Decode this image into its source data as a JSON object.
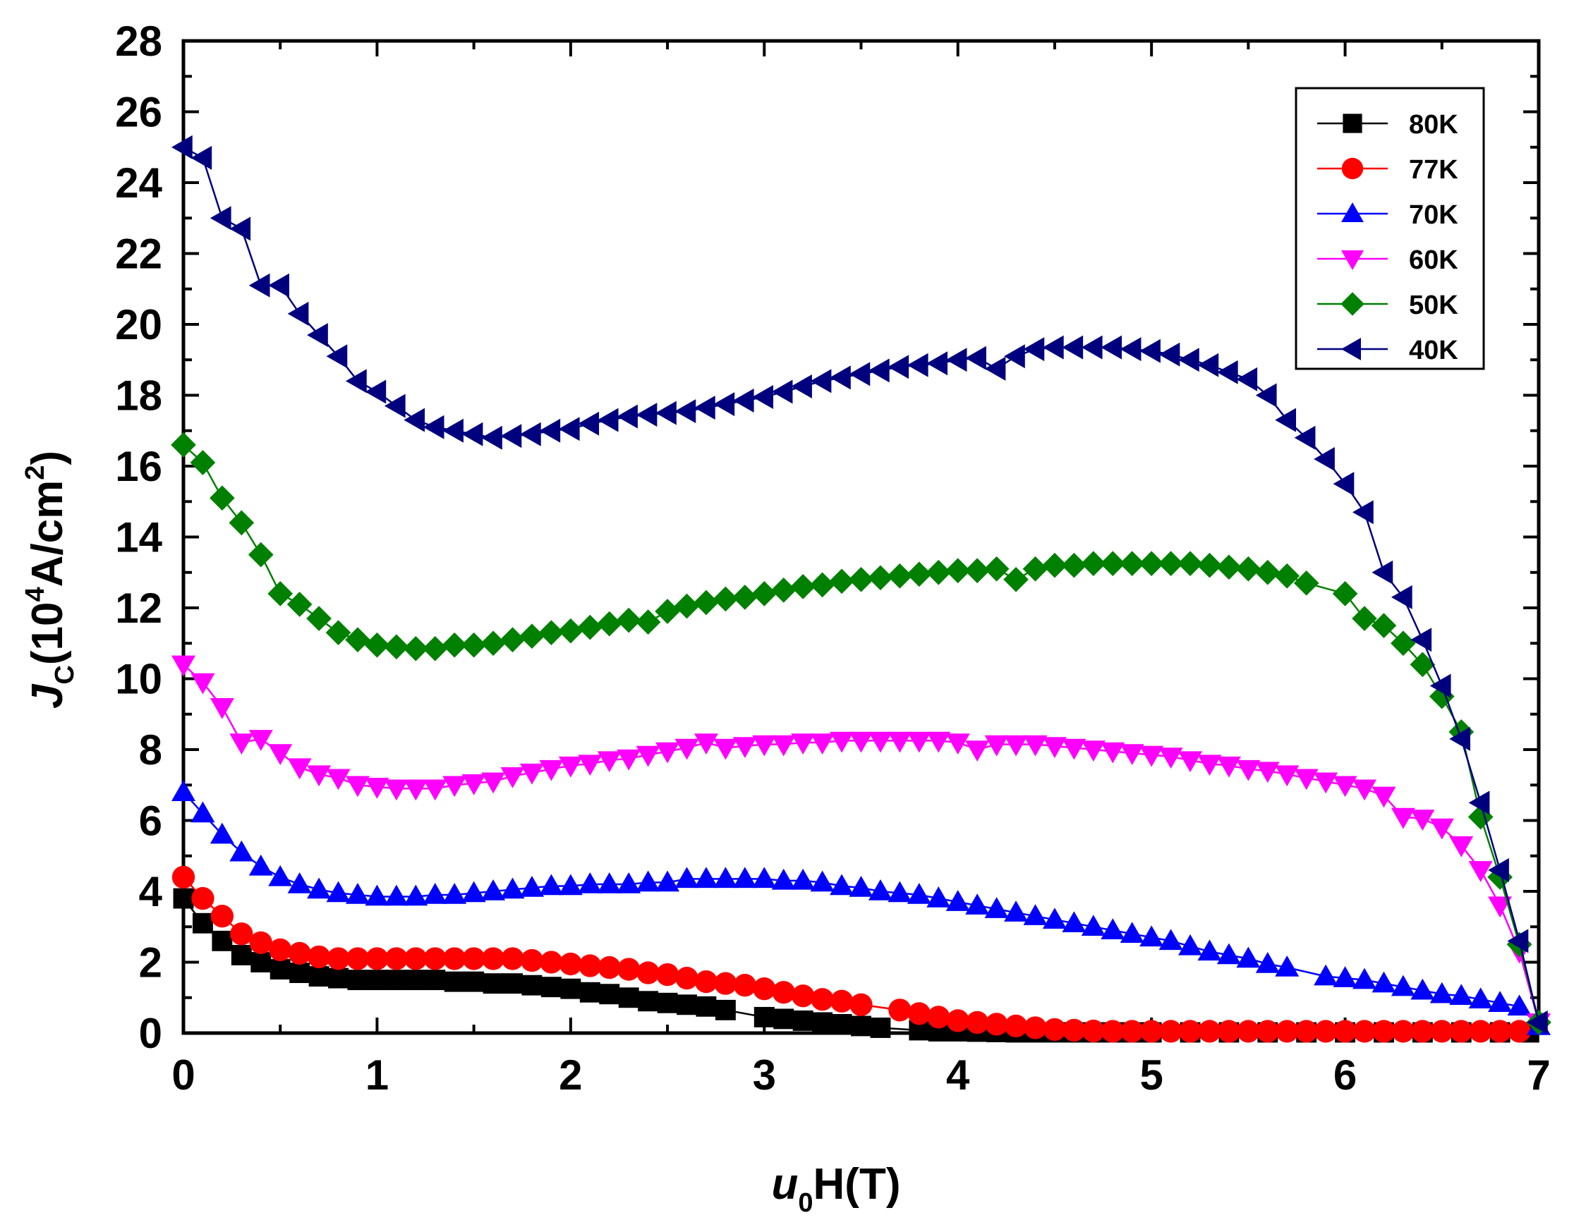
{
  "chart_data": {
    "type": "line",
    "xlabel": {
      "italic": "u",
      "sub": "0",
      "rest": "H(T)"
    },
    "ylabel": {
      "italic": "J",
      "sub": "C",
      "pre": "(10",
      "sup1": "4",
      "mid": "A/cm",
      "sup2": "2",
      "post": ")"
    },
    "xlim": [
      0,
      7
    ],
    "ylim": [
      0,
      28
    ],
    "xticks": [
      "0",
      "1",
      "2",
      "3",
      "4",
      "5",
      "6",
      "7"
    ],
    "yticks": [
      "0",
      "2",
      "4",
      "6",
      "8",
      "10",
      "12",
      "14",
      "16",
      "18",
      "20",
      "22",
      "24",
      "26",
      "28"
    ],
    "legend_position": "top-right",
    "series": [
      {
        "name": "80K",
        "color": "#000000",
        "marker": "square",
        "x": [
          0,
          0.1,
          0.2,
          0.3,
          0.4,
          0.5,
          0.6,
          0.7,
          0.8,
          0.9,
          1.0,
          1.1,
          1.2,
          1.3,
          1.4,
          1.5,
          1.6,
          1.7,
          1.8,
          1.9,
          2.0,
          2.1,
          2.2,
          2.3,
          2.4,
          2.5,
          2.6,
          2.7,
          2.8,
          3.0,
          3.1,
          3.2,
          3.3,
          3.4,
          3.5,
          3.6,
          3.8,
          3.9,
          4.0,
          4.1,
          4.2,
          4.3,
          4.4,
          4.5,
          4.6,
          4.7,
          4.8,
          4.9,
          5.0,
          5.2,
          5.4,
          5.6,
          5.8,
          6.0,
          6.2,
          6.4,
          6.6,
          6.8,
          6.95
        ],
        "y": [
          3.8,
          3.1,
          2.6,
          2.2,
          2.0,
          1.8,
          1.7,
          1.6,
          1.55,
          1.5,
          1.5,
          1.5,
          1.5,
          1.5,
          1.45,
          1.45,
          1.4,
          1.4,
          1.35,
          1.3,
          1.25,
          1.15,
          1.1,
          1.0,
          0.9,
          0.85,
          0.8,
          0.75,
          0.65,
          0.45,
          0.4,
          0.35,
          0.3,
          0.25,
          0.2,
          0.15,
          0.08,
          0.05,
          0.05,
          0.04,
          0.03,
          0.02,
          0.02,
          0.02,
          0.02,
          0.02,
          0.02,
          0.02,
          0.02,
          0.02,
          0.02,
          0.02,
          0.02,
          0.02,
          0.02,
          0.02,
          0.02,
          0.02,
          0.02
        ]
      },
      {
        "name": "77K",
        "color": "#ff0000",
        "marker": "circle",
        "x": [
          0,
          0.1,
          0.2,
          0.3,
          0.4,
          0.5,
          0.6,
          0.7,
          0.8,
          0.9,
          1.0,
          1.1,
          1.2,
          1.3,
          1.4,
          1.5,
          1.6,
          1.7,
          1.8,
          1.9,
          2.0,
          2.1,
          2.2,
          2.3,
          2.4,
          2.5,
          2.6,
          2.7,
          2.8,
          2.9,
          3.0,
          3.1,
          3.2,
          3.3,
          3.4,
          3.5,
          3.7,
          3.8,
          3.9,
          4.0,
          4.1,
          4.2,
          4.3,
          4.4,
          4.5,
          4.6,
          4.7,
          4.8,
          4.9,
          5.0,
          5.1,
          5.2,
          5.3,
          5.4,
          5.5,
          5.6,
          5.7,
          5.8,
          5.9,
          6.0,
          6.1,
          6.2,
          6.3,
          6.4,
          6.5,
          6.6,
          6.7,
          6.8,
          6.9
        ],
        "y": [
          4.4,
          3.8,
          3.3,
          2.8,
          2.55,
          2.35,
          2.25,
          2.15,
          2.1,
          2.1,
          2.1,
          2.1,
          2.1,
          2.1,
          2.1,
          2.1,
          2.1,
          2.1,
          2.05,
          2.0,
          1.95,
          1.9,
          1.85,
          1.8,
          1.7,
          1.65,
          1.55,
          1.45,
          1.4,
          1.35,
          1.25,
          1.15,
          1.05,
          0.95,
          0.9,
          0.8,
          0.65,
          0.55,
          0.45,
          0.35,
          0.3,
          0.25,
          0.2,
          0.15,
          0.1,
          0.08,
          0.06,
          0.05,
          0.05,
          0.05,
          0.05,
          0.05,
          0.05,
          0.05,
          0.05,
          0.05,
          0.05,
          0.05,
          0.05,
          0.05,
          0.05,
          0.05,
          0.05,
          0.05,
          0.05,
          0.05,
          0.05,
          0.05,
          0.05
        ]
      },
      {
        "name": "70K",
        "color": "#0000ff",
        "marker": "triangle-up",
        "x": [
          0,
          0.1,
          0.2,
          0.3,
          0.4,
          0.5,
          0.6,
          0.7,
          0.8,
          0.9,
          1.0,
          1.1,
          1.2,
          1.3,
          1.4,
          1.5,
          1.6,
          1.7,
          1.8,
          1.9,
          2.0,
          2.1,
          2.2,
          2.3,
          2.4,
          2.5,
          2.6,
          2.7,
          2.8,
          2.9,
          3.0,
          3.1,
          3.2,
          3.3,
          3.4,
          3.5,
          3.6,
          3.7,
          3.8,
          3.9,
          4.0,
          4.1,
          4.2,
          4.3,
          4.4,
          4.5,
          4.6,
          4.7,
          4.8,
          4.9,
          5.0,
          5.1,
          5.2,
          5.3,
          5.4,
          5.5,
          5.6,
          5.7,
          5.9,
          6.0,
          6.1,
          6.2,
          6.3,
          6.4,
          6.5,
          6.6,
          6.7,
          6.8,
          6.9,
          7.0
        ],
        "y": [
          6.8,
          6.2,
          5.6,
          5.1,
          4.7,
          4.4,
          4.2,
          4.05,
          3.95,
          3.9,
          3.85,
          3.85,
          3.85,
          3.9,
          3.9,
          3.95,
          4.0,
          4.05,
          4.1,
          4.15,
          4.15,
          4.2,
          4.2,
          4.2,
          4.25,
          4.25,
          4.35,
          4.35,
          4.35,
          4.35,
          4.35,
          4.3,
          4.3,
          4.25,
          4.15,
          4.1,
          4.0,
          3.95,
          3.9,
          3.8,
          3.7,
          3.6,
          3.5,
          3.4,
          3.3,
          3.2,
          3.1,
          3.0,
          2.9,
          2.8,
          2.7,
          2.6,
          2.45,
          2.3,
          2.2,
          2.1,
          1.95,
          1.85,
          1.6,
          1.55,
          1.5,
          1.4,
          1.3,
          1.2,
          1.1,
          1.05,
          0.95,
          0.85,
          0.75,
          0.2
        ]
      },
      {
        "name": "60K",
        "color": "#ff00ff",
        "marker": "triangle-down",
        "x": [
          0,
          0.1,
          0.2,
          0.3,
          0.4,
          0.5,
          0.6,
          0.7,
          0.8,
          0.9,
          1.0,
          1.1,
          1.2,
          1.3,
          1.4,
          1.5,
          1.6,
          1.7,
          1.8,
          1.9,
          2.0,
          2.1,
          2.2,
          2.3,
          2.4,
          2.5,
          2.6,
          2.7,
          2.8,
          2.9,
          3.0,
          3.1,
          3.2,
          3.3,
          3.4,
          3.5,
          3.6,
          3.7,
          3.8,
          3.9,
          4.0,
          4.1,
          4.2,
          4.3,
          4.4,
          4.5,
          4.6,
          4.7,
          4.8,
          4.9,
          5.0,
          5.1,
          5.2,
          5.3,
          5.4,
          5.5,
          5.6,
          5.7,
          5.8,
          5.9,
          6.0,
          6.1,
          6.2,
          6.3,
          6.4,
          6.5,
          6.6,
          6.7,
          6.8,
          6.9,
          7.0
        ],
        "y": [
          10.4,
          9.9,
          9.2,
          8.2,
          8.3,
          7.9,
          7.5,
          7.3,
          7.2,
          7.0,
          6.95,
          6.9,
          6.9,
          6.9,
          7.0,
          7.05,
          7.1,
          7.25,
          7.35,
          7.45,
          7.55,
          7.6,
          7.7,
          7.75,
          7.85,
          7.95,
          8.05,
          8.2,
          8.05,
          8.1,
          8.15,
          8.15,
          8.2,
          8.2,
          8.25,
          8.25,
          8.25,
          8.25,
          8.25,
          8.25,
          8.2,
          8.0,
          8.15,
          8.15,
          8.15,
          8.1,
          8.05,
          8.0,
          7.95,
          7.9,
          7.85,
          7.8,
          7.7,
          7.6,
          7.55,
          7.45,
          7.4,
          7.3,
          7.2,
          7.1,
          7.0,
          6.9,
          6.7,
          6.1,
          6.05,
          5.8,
          5.3,
          4.6,
          3.6,
          2.3,
          0.3
        ]
      },
      {
        "name": "50K",
        "color": "#008000",
        "marker": "diamond",
        "x": [
          0,
          0.1,
          0.2,
          0.3,
          0.4,
          0.5,
          0.6,
          0.7,
          0.8,
          0.9,
          1.0,
          1.1,
          1.2,
          1.3,
          1.4,
          1.5,
          1.6,
          1.7,
          1.8,
          1.9,
          2.0,
          2.1,
          2.2,
          2.3,
          2.4,
          2.5,
          2.6,
          2.7,
          2.8,
          2.9,
          3.0,
          3.1,
          3.2,
          3.3,
          3.4,
          3.5,
          3.6,
          3.7,
          3.8,
          3.9,
          4.0,
          4.1,
          4.2,
          4.3,
          4.4,
          4.5,
          4.6,
          4.7,
          4.8,
          4.9,
          5.0,
          5.1,
          5.2,
          5.3,
          5.4,
          5.5,
          5.6,
          5.7,
          5.8,
          6.0,
          6.1,
          6.2,
          6.3,
          6.4,
          6.5,
          6.6,
          6.7,
          6.8,
          6.9,
          7.0
        ],
        "y": [
          16.6,
          16.1,
          15.1,
          14.4,
          13.5,
          12.4,
          12.1,
          11.7,
          11.3,
          11.1,
          10.95,
          10.9,
          10.85,
          10.85,
          10.95,
          10.95,
          11.0,
          11.1,
          11.2,
          11.3,
          11.35,
          11.45,
          11.55,
          11.65,
          11.6,
          11.9,
          12.05,
          12.15,
          12.25,
          12.3,
          12.4,
          12.5,
          12.6,
          12.65,
          12.75,
          12.8,
          12.85,
          12.9,
          12.95,
          13.0,
          13.05,
          13.05,
          13.1,
          12.8,
          13.1,
          13.2,
          13.2,
          13.25,
          13.25,
          13.25,
          13.25,
          13.25,
          13.25,
          13.2,
          13.15,
          13.1,
          13.0,
          12.9,
          12.7,
          12.4,
          11.7,
          11.5,
          11.0,
          10.4,
          9.5,
          8.5,
          6.1,
          4.4,
          2.5,
          0.3
        ]
      },
      {
        "name": "40K",
        "color": "#00007f",
        "marker": "triangle-left",
        "x": [
          0,
          0.1,
          0.2,
          0.3,
          0.4,
          0.5,
          0.6,
          0.7,
          0.8,
          0.9,
          1.0,
          1.1,
          1.2,
          1.3,
          1.4,
          1.5,
          1.6,
          1.7,
          1.8,
          1.9,
          2.0,
          2.1,
          2.2,
          2.3,
          2.4,
          2.5,
          2.6,
          2.7,
          2.8,
          2.9,
          3.0,
          3.1,
          3.2,
          3.3,
          3.4,
          3.5,
          3.6,
          3.7,
          3.8,
          3.9,
          4.0,
          4.1,
          4.2,
          4.3,
          4.4,
          4.5,
          4.6,
          4.7,
          4.8,
          4.9,
          5.0,
          5.1,
          5.2,
          5.3,
          5.4,
          5.5,
          5.6,
          5.7,
          5.8,
          5.9,
          6.0,
          6.1,
          6.2,
          6.3,
          6.4,
          6.5,
          6.6,
          6.7,
          6.8,
          6.9,
          7.0
        ],
        "y": [
          25.0,
          24.7,
          23.0,
          22.7,
          21.1,
          21.1,
          20.3,
          19.7,
          19.1,
          18.4,
          18.1,
          17.7,
          17.3,
          17.1,
          17.0,
          16.9,
          16.8,
          16.85,
          16.9,
          17.0,
          17.05,
          17.2,
          17.3,
          17.4,
          17.45,
          17.5,
          17.55,
          17.65,
          17.75,
          17.85,
          17.95,
          18.1,
          18.25,
          18.4,
          18.5,
          18.6,
          18.7,
          18.8,
          18.85,
          18.9,
          19.0,
          19.05,
          18.75,
          19.1,
          19.3,
          19.35,
          19.35,
          19.35,
          19.35,
          19.3,
          19.25,
          19.15,
          19.0,
          18.85,
          18.65,
          18.45,
          18.0,
          17.3,
          16.8,
          16.2,
          15.5,
          14.7,
          13.0,
          12.3,
          11.1,
          9.8,
          8.3,
          6.5,
          4.6,
          2.6,
          0.3
        ]
      }
    ]
  }
}
